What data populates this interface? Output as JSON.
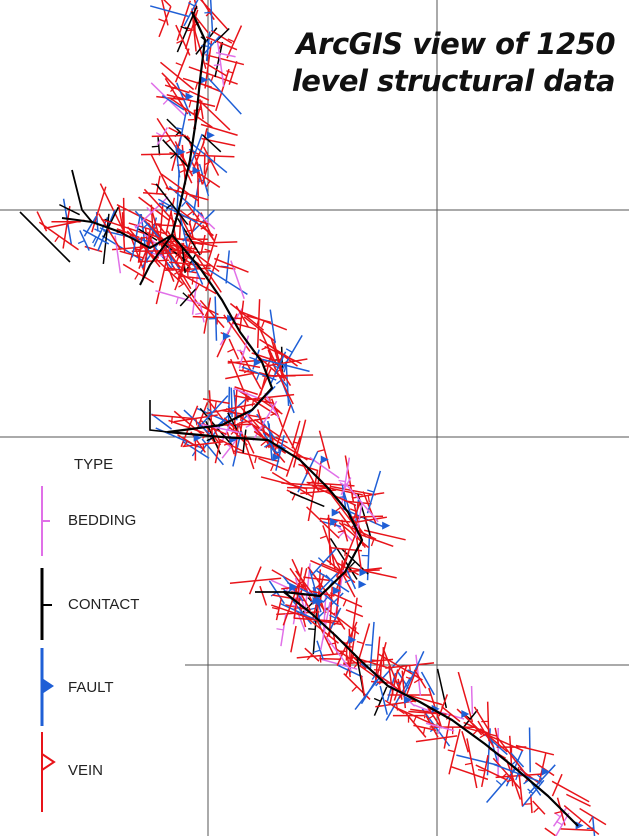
{
  "title": {
    "line1": "ArcGIS view of 1250",
    "line2": "level structural data"
  },
  "legend": {
    "heading": "TYPE",
    "items": [
      {
        "label": "BEDDING",
        "color": "#e070e8"
      },
      {
        "label": "CONTACT",
        "color": "#000000"
      },
      {
        "label": "FAULT",
        "color": "#1f5fd6"
      },
      {
        "label": "VEIN",
        "color": "#e8141a"
      }
    ]
  },
  "colors": {
    "grid": "#555555",
    "bedding": "#e070e8",
    "contact": "#000000",
    "fault": "#1f5fd6",
    "vein": "#e8141a"
  }
}
